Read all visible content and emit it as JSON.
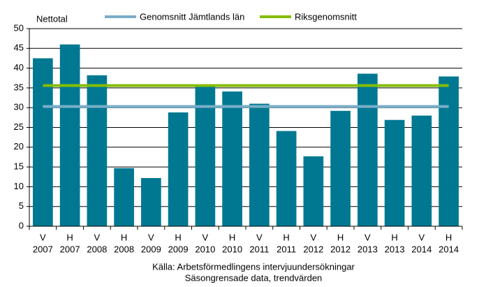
{
  "chart_data": {
    "type": "bar",
    "ylabel": "Nettotal",
    "categories": [
      [
        "V",
        "2007"
      ],
      [
        "H",
        "2007"
      ],
      [
        "V",
        "2008"
      ],
      [
        "H",
        "2008"
      ],
      [
        "V",
        "2009"
      ],
      [
        "H",
        "2009"
      ],
      [
        "V",
        "2010"
      ],
      [
        "H",
        "2010"
      ],
      [
        "V",
        "2011"
      ],
      [
        "H",
        "2011"
      ],
      [
        "V",
        "2012"
      ],
      [
        "H",
        "2012"
      ],
      [
        "V",
        "2013"
      ],
      [
        "H",
        "2013"
      ],
      [
        "V",
        "2014"
      ],
      [
        "H",
        "2014"
      ]
    ],
    "values": [
      42.5,
      46,
      38.2,
      14.7,
      12.2,
      28.8,
      35.5,
      34.1,
      31,
      24.1,
      17.7,
      29.2,
      38.6,
      26.9,
      28,
      37.9
    ],
    "color": "#007892",
    "reference_lines": [
      {
        "name": "Genomsnitt Jämtlands län",
        "color": "#79aec8",
        "value": 30.3
      },
      {
        "name": "Riksgenomsnitt",
        "color": "#84bd00",
        "value": 35.6
      }
    ],
    "ylim": [
      0,
      50
    ],
    "yticks": [
      0,
      5,
      10,
      15,
      20,
      25,
      30,
      35,
      40,
      45,
      50
    ],
    "grid": true,
    "notes": [
      "Källa: Arbetsförmedlingens intervjuundersökningar",
      "Säsongrensade data, trendvärden"
    ]
  }
}
